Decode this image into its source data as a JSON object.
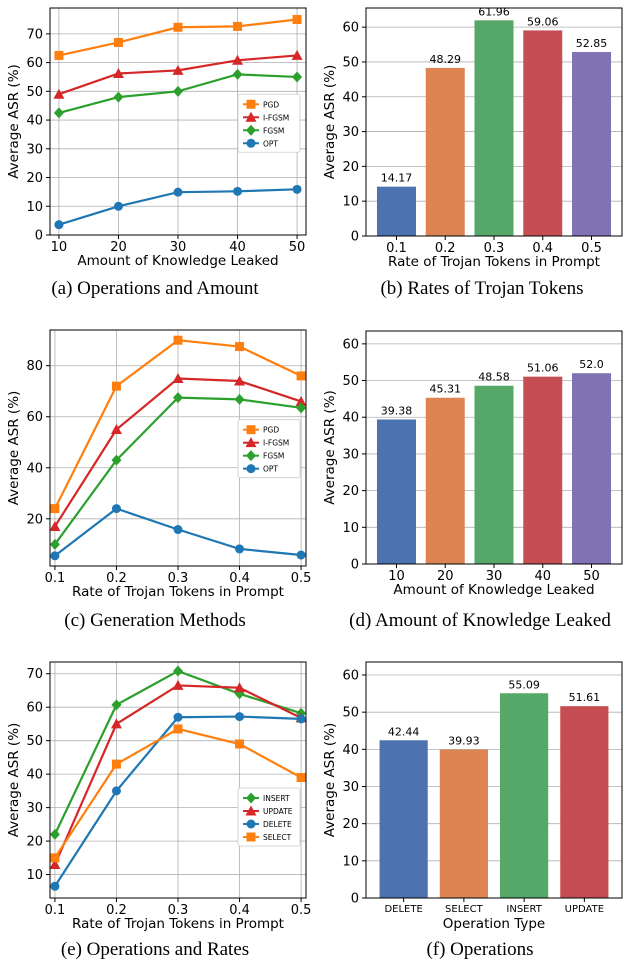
{
  "chart_data": [
    {
      "type": "line",
      "caption": "(a) Operations and Amount",
      "xlabel": "Amount of Knowledge Leaked",
      "ylabel": "Average ASR (%)",
      "x": [
        10,
        20,
        30,
        40,
        50
      ],
      "xticks": [
        "10",
        "20",
        "30",
        "40",
        "50"
      ],
      "xlim": [
        8.5,
        51.5
      ],
      "ylim": [
        0,
        79
      ],
      "yticks": [
        0,
        10,
        20,
        30,
        40,
        50,
        60,
        70
      ],
      "grid": true,
      "legend_position": "center-right",
      "series": [
        {
          "name": "PGD",
          "color": "#ff7f0e",
          "marker": "square",
          "values": [
            62.5,
            67.0,
            72.3,
            72.6,
            75.0
          ]
        },
        {
          "name": "I-FGSM",
          "color": "#d62728",
          "marker": "triangle",
          "values": [
            49.0,
            56.2,
            57.3,
            60.8,
            62.5
          ]
        },
        {
          "name": "FGSM",
          "color": "#2ca02c",
          "marker": "diamond",
          "values": [
            42.5,
            48.0,
            50.0,
            55.9,
            55.0
          ]
        },
        {
          "name": "OPT",
          "color": "#1f77b4",
          "marker": "circle",
          "values": [
            3.6,
            10.0,
            14.9,
            15.2,
            15.9
          ]
        }
      ]
    },
    {
      "type": "bar",
      "caption": "(b) Rates of Trojan Tokens",
      "xlabel": "Rate of Trojan Tokens in Prompt",
      "ylabel": "Average ASR (%)",
      "categories": [
        "0.1",
        "0.2",
        "0.3",
        "0.4",
        "0.5"
      ],
      "values": [
        14.17,
        48.29,
        61.96,
        59.06,
        52.85
      ],
      "labels": [
        "14.17",
        "48.29",
        "61.96",
        "59.06",
        "52.85"
      ],
      "colors": [
        "#4c72b0",
        "#dd8452",
        "#55a868",
        "#c44e52",
        "#8172b3"
      ],
      "ylim": [
        0,
        65.5
      ],
      "yticks": [
        0,
        10,
        20,
        30,
        40,
        50,
        60
      ],
      "grid": true
    },
    {
      "type": "line",
      "caption": "(c) Generation Methods",
      "xlabel": "Rate of Trojan Tokens in Prompt",
      "ylabel": "Average ASR (%)",
      "x": [
        0.1,
        0.2,
        0.3,
        0.4,
        0.5
      ],
      "xticks": [
        "0.1",
        "0.2",
        "0.3",
        "0.4",
        "0.5"
      ],
      "xlim": [
        0.092,
        0.508
      ],
      "ylim": [
        1.5,
        94
      ],
      "yticks": [
        20,
        40,
        60,
        80
      ],
      "grid": true,
      "legend_position": "center-right",
      "series": [
        {
          "name": "PGD",
          "color": "#ff7f0e",
          "marker": "square",
          "values": [
            24.0,
            72.0,
            90.0,
            87.5,
            76.0
          ]
        },
        {
          "name": "I-FGSM",
          "color": "#d62728",
          "marker": "triangle",
          "values": [
            17.0,
            55.0,
            75.0,
            74.0,
            66.0
          ]
        },
        {
          "name": "FGSM",
          "color": "#2ca02c",
          "marker": "diamond",
          "values": [
            10.0,
            43.0,
            67.5,
            66.8,
            63.5
          ]
        },
        {
          "name": "OPT",
          "color": "#1f77b4",
          "marker": "circle",
          "values": [
            5.5,
            24.0,
            15.8,
            8.2,
            5.8
          ]
        }
      ]
    },
    {
      "type": "bar",
      "caption": "(d) Amount of Knowledge Leaked",
      "xlabel": "Amount of Knowledge Leaked",
      "ylabel": "Average ASR (%)",
      "categories": [
        "10",
        "20",
        "30",
        "40",
        "50"
      ],
      "values": [
        39.38,
        45.31,
        48.58,
        51.06,
        52.0
      ],
      "labels": [
        "39.38",
        "45.31",
        "48.58",
        "51.06",
        "52.0"
      ],
      "colors": [
        "#4c72b0",
        "#dd8452",
        "#55a868",
        "#c44e52",
        "#8172b3"
      ],
      "ylim": [
        0,
        63.5
      ],
      "yticks": [
        0,
        10,
        20,
        30,
        40,
        50,
        60
      ],
      "grid": true
    },
    {
      "type": "line",
      "caption": "(e) Operations and Rates",
      "xlabel": "Rate of Trojan Tokens in Prompt",
      "ylabel": "Average ASR (%)",
      "x": [
        0.1,
        0.2,
        0.3,
        0.4,
        0.5
      ],
      "xticks": [
        "0.1",
        "0.2",
        "0.3",
        "0.4",
        "0.5"
      ],
      "xlim": [
        0.092,
        0.508
      ],
      "ylim": [
        3,
        73.5
      ],
      "yticks": [
        10,
        20,
        30,
        40,
        50,
        60,
        70
      ],
      "grid": true,
      "legend_position": "lower-right",
      "series": [
        {
          "name": "INSERT",
          "color": "#2ca02c",
          "marker": "diamond",
          "values": [
            22.0,
            60.7,
            70.8,
            64.0,
            58.2
          ]
        },
        {
          "name": "UPDATE",
          "color": "#d62728",
          "marker": "triangle",
          "values": [
            13.0,
            55.0,
            66.5,
            65.8,
            56.8
          ]
        },
        {
          "name": "DELETE",
          "color": "#1f77b4",
          "marker": "circle",
          "values": [
            6.5,
            35.0,
            57.0,
            57.2,
            56.5
          ]
        },
        {
          "name": "SELECT",
          "color": "#ff7f0e",
          "marker": "square",
          "values": [
            15.0,
            43.0,
            53.5,
            49.0,
            39.0
          ]
        }
      ]
    },
    {
      "type": "bar",
      "caption": "(f) Operations",
      "xlabel": "Operation Type",
      "ylabel": "Average ASR (%)",
      "categories": [
        "DELETE",
        "SELECT",
        "INSERT",
        "UPDATE"
      ],
      "values": [
        42.44,
        39.93,
        55.09,
        51.61
      ],
      "labels": [
        "42.44",
        "39.93",
        "55.09",
        "51.61"
      ],
      "colors": [
        "#4c72b0",
        "#dd8452",
        "#55a868",
        "#c44e52"
      ],
      "ylim": [
        0,
        63.5
      ],
      "yticks": [
        0,
        10,
        20,
        30,
        40,
        50,
        60
      ],
      "grid": true
    }
  ]
}
